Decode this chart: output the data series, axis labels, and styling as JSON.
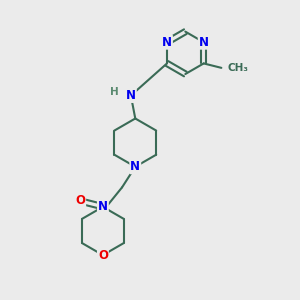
{
  "bg_color": "#ebebeb",
  "bond_color": "#3a6b56",
  "bond_width": 1.5,
  "atom_colors": {
    "N": "#0000ee",
    "O": "#ee0000",
    "C": "#3a6b56",
    "H": "#5a8a70"
  },
  "font_size_atom": 8.5,
  "font_size_small": 7.5,
  "figsize": [
    3.0,
    3.0
  ],
  "dpi": 100
}
